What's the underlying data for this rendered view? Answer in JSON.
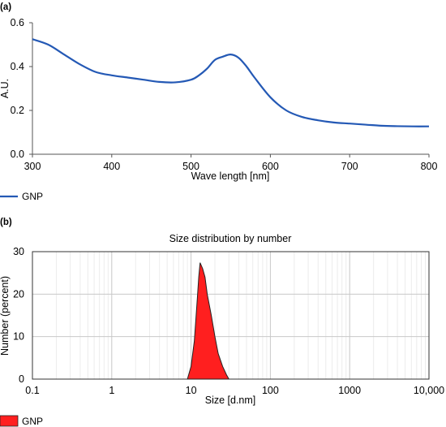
{
  "chart_data": [
    {
      "panel_label": "(a)",
      "type": "line",
      "title": "",
      "xlabel": "Wave length [nm]",
      "ylabel": "A.U.",
      "xlim": [
        300,
        800
      ],
      "ylim": [
        0,
        0.6
      ],
      "x_ticks": [
        "300",
        "400",
        "500",
        "600",
        "700",
        "800"
      ],
      "y_ticks": [
        "0.0",
        "0.2",
        "0.4",
        "0.6"
      ],
      "grid": "none",
      "legend_position": "bottom-left",
      "series": [
        {
          "name": "GNP",
          "color": "#2459b5",
          "x": [
            300,
            320,
            340,
            360,
            380,
            400,
            420,
            440,
            460,
            480,
            500,
            510,
            520,
            530,
            540,
            550,
            560,
            570,
            580,
            600,
            620,
            640,
            660,
            680,
            700,
            720,
            740,
            760,
            780,
            800
          ],
          "y": [
            0.525,
            0.5,
            0.455,
            0.41,
            0.375,
            0.36,
            0.35,
            0.34,
            0.33,
            0.328,
            0.34,
            0.36,
            0.39,
            0.43,
            0.445,
            0.455,
            0.44,
            0.4,
            0.35,
            0.26,
            0.2,
            0.17,
            0.155,
            0.145,
            0.14,
            0.135,
            0.13,
            0.128,
            0.127,
            0.127
          ]
        }
      ]
    },
    {
      "panel_label": "(b)",
      "type": "area",
      "title": "Size distribution by number",
      "xlabel": "Size [d.nm]",
      "ylabel": "Number (percent)",
      "xlim": [
        0.1,
        10000
      ],
      "x_scale": "log",
      "ylim": [
        0,
        30
      ],
      "x_ticks": [
        "0.1",
        "1",
        "10",
        "100",
        "1000",
        "10,000"
      ],
      "y_ticks": [
        "0",
        "10",
        "20",
        "30"
      ],
      "grid": "both",
      "legend_position": "bottom-left",
      "series": [
        {
          "name": "GNP",
          "color": "#ff1f1f",
          "x": [
            9,
            10,
            11,
            12,
            12.5,
            13,
            14,
            15,
            16,
            18,
            20,
            22,
            25,
            28,
            30
          ],
          "y": [
            0,
            3,
            9,
            19,
            24,
            27.4,
            26,
            24,
            20,
            15,
            10,
            6,
            3,
            1,
            0
          ]
        }
      ]
    }
  ]
}
